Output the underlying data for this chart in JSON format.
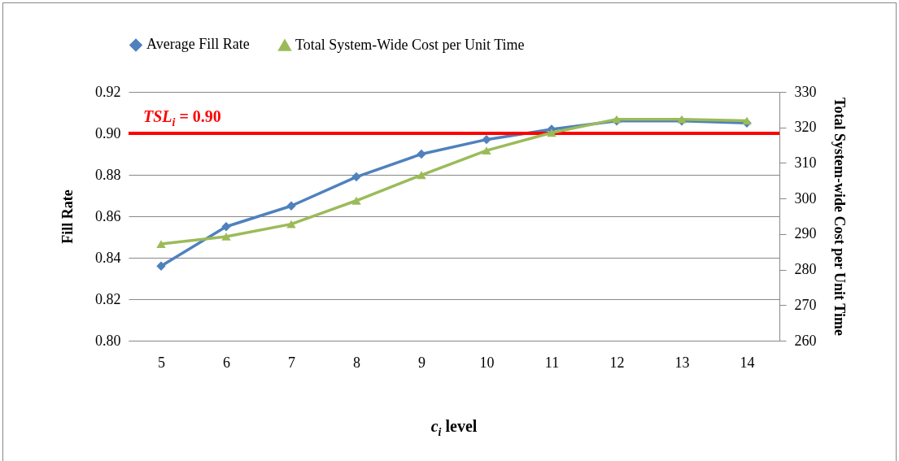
{
  "chart_data": {
    "type": "line",
    "categories": [
      "5",
      "6",
      "7",
      "8",
      "9",
      "10",
      "11",
      "12",
      "13",
      "14"
    ],
    "xlabel": "c$_{i}$ level",
    "ylabel": "Fill Rate",
    "y2label": "Total System-wide Cost per Unit Time",
    "ylim": [
      0.8,
      0.92
    ],
    "yticks": [
      {
        "value": 0.8,
        "label": "0.80"
      },
      {
        "value": 0.82,
        "label": "0.82"
      },
      {
        "value": 0.84,
        "label": "0.84"
      },
      {
        "value": 0.86,
        "label": "0.86"
      },
      {
        "value": 0.88,
        "label": "0.88"
      },
      {
        "value": 0.9,
        "label": "0.90"
      },
      {
        "value": 0.92,
        "label": "0.92"
      }
    ],
    "y2lim": [
      260,
      330
    ],
    "y2ticks": [
      260,
      270,
      280,
      290,
      300,
      310,
      320,
      330
    ],
    "grid": "y",
    "legend": "top",
    "series": [
      {
        "name": "Average Fill Rate",
        "color": "#4f81bd",
        "marker": "diamond",
        "values": [
          0.836,
          0.855,
          0.865,
          0.879,
          0.89,
          0.897,
          0.902,
          0.906,
          0.906,
          0.905
        ]
      },
      {
        "name": "Total System-Wide Cost per Unit Time",
        "color": "#9bbb59",
        "marker": "triangle",
        "axis": "y2",
        "values": [
          287.2,
          289.3,
          292.8,
          299.4,
          306.6,
          313.5,
          318.5,
          322.3,
          322.3,
          321.9
        ]
      }
    ],
    "ref_lines": [
      {
        "axis": "y",
        "value": 0.9,
        "label": "TSL$_{i}$ = 0.90",
        "color": "#ff0000"
      }
    ]
  }
}
